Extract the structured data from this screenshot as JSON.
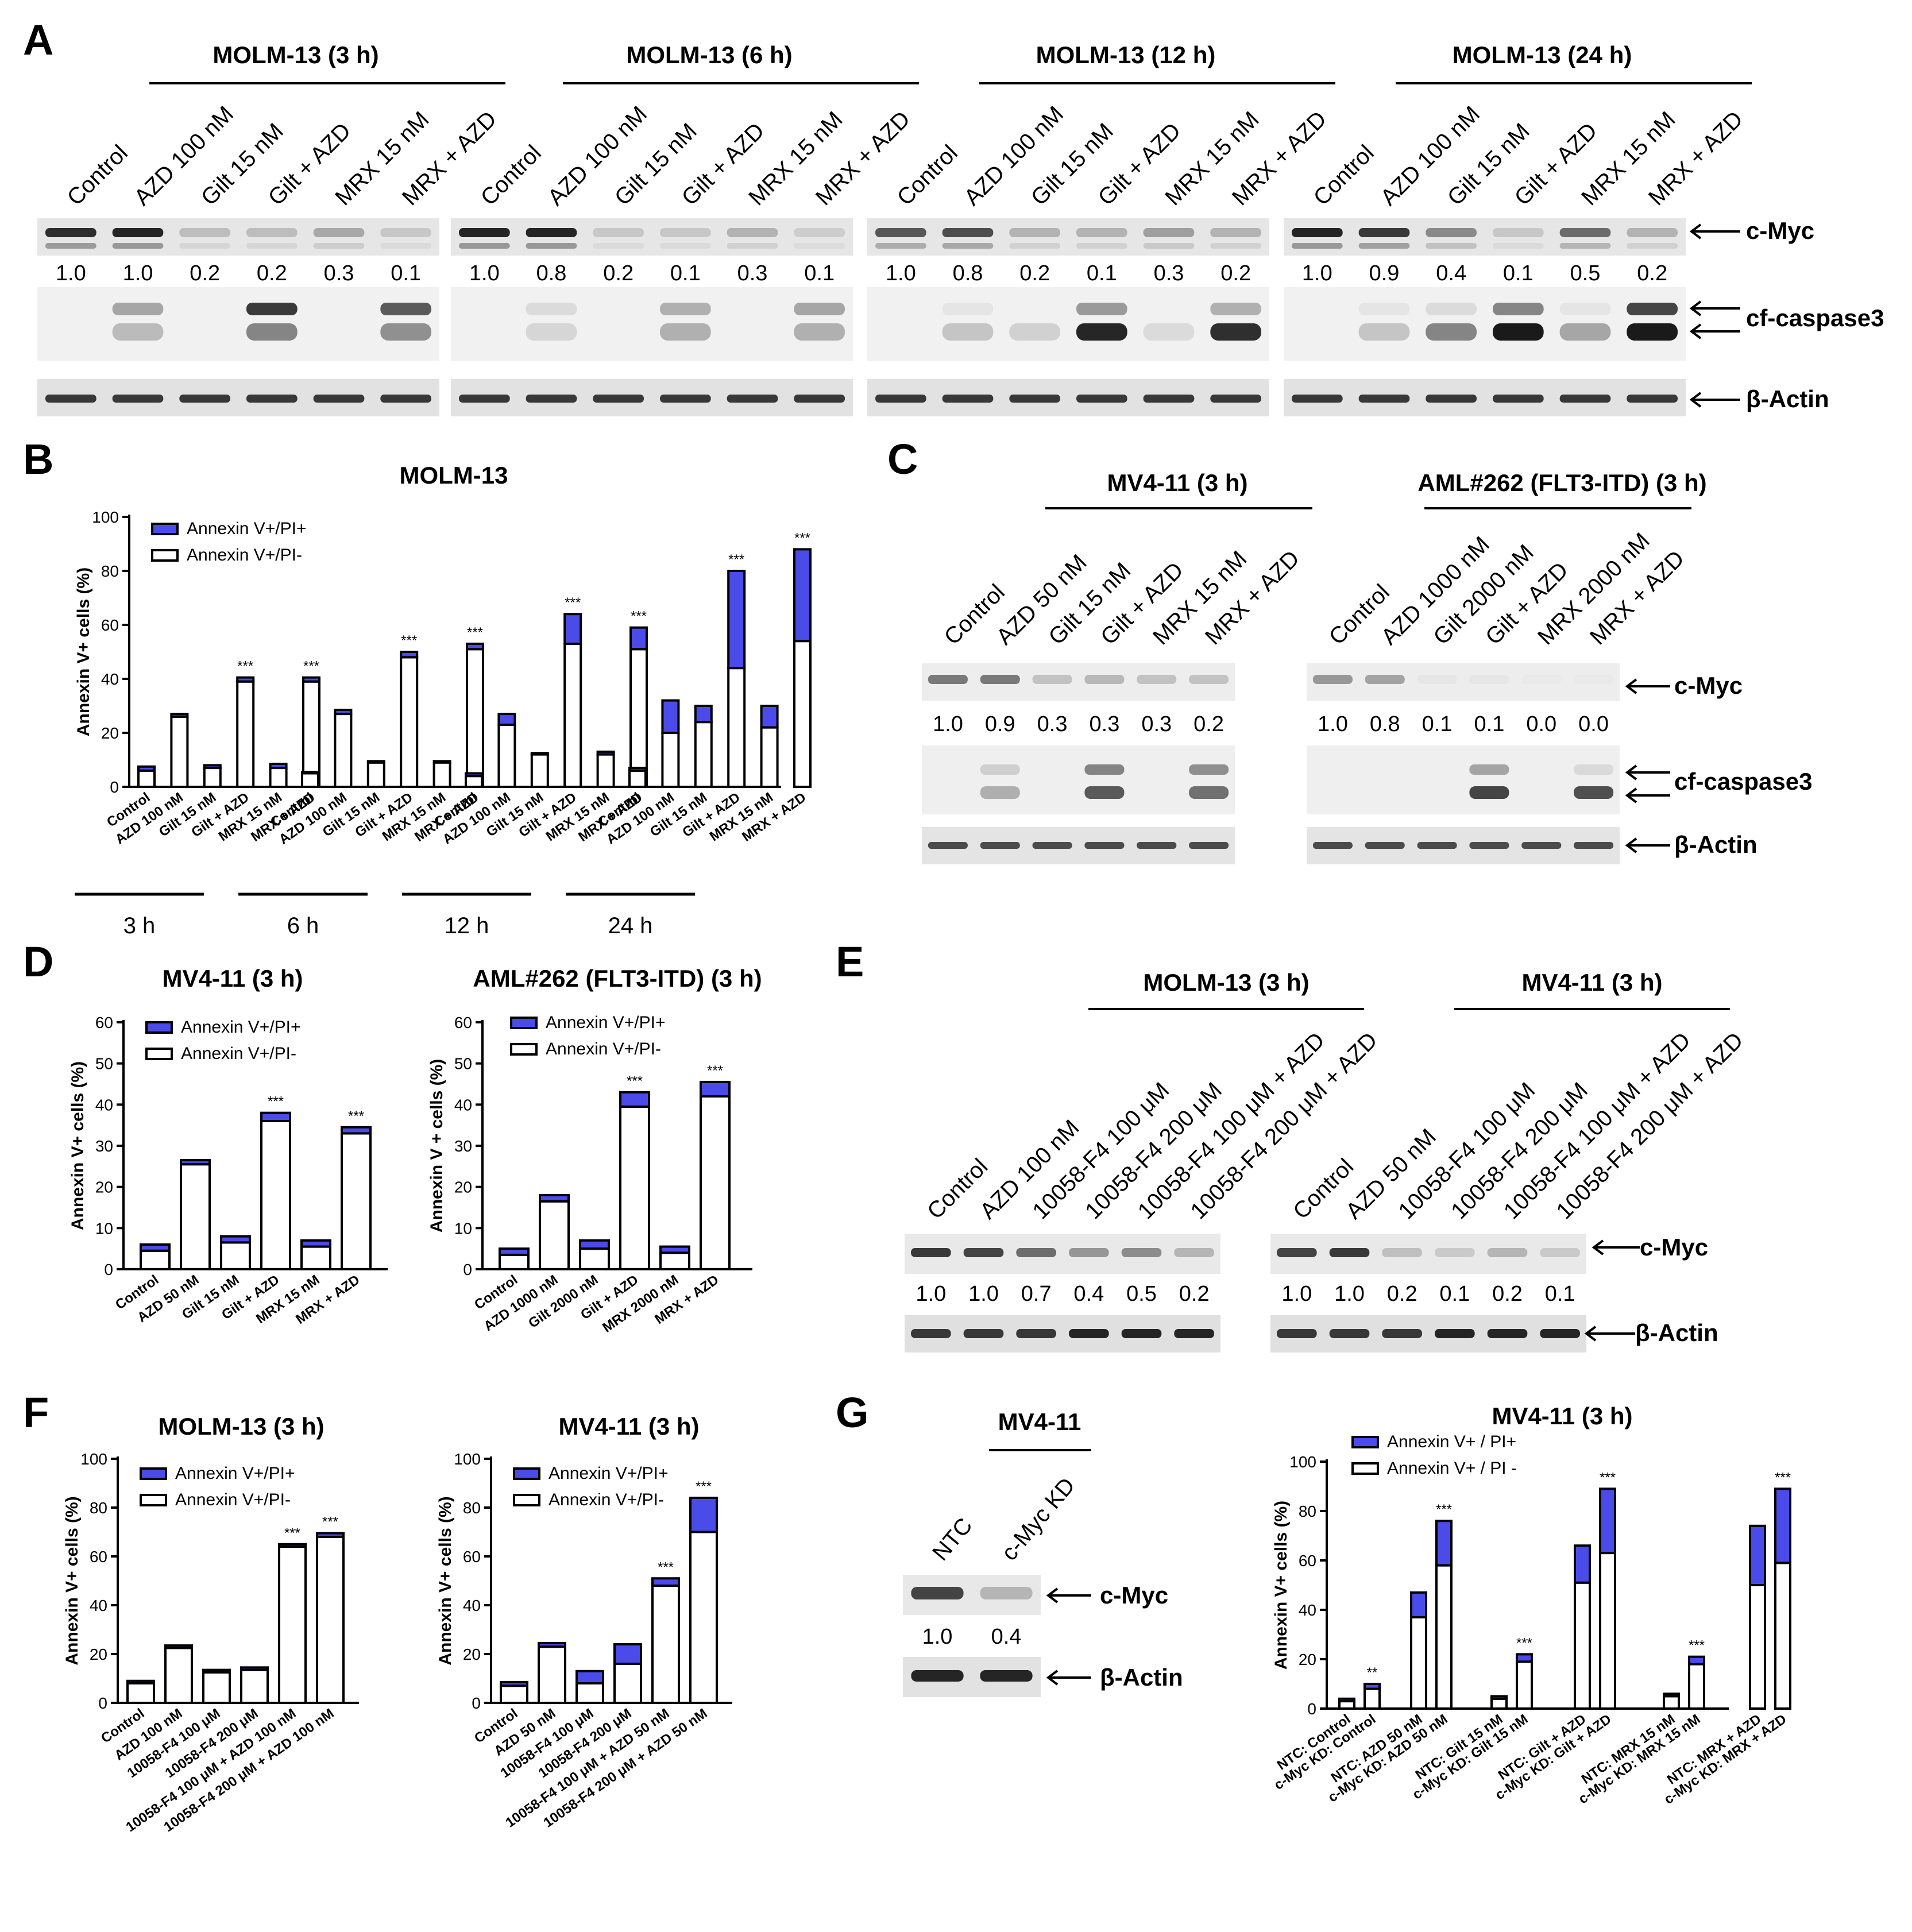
{
  "panels": {
    "A": {
      "letter": "A",
      "groups": [
        {
          "title": "MOLM-13 (3 h)",
          "lanes": [
            "Control",
            "AZD 100 nM",
            "Gilt 15 nM",
            "Gilt + AZD",
            "MRX 15 nM",
            "MRX + AZD"
          ],
          "cmyc": [
            "1.0",
            "1.0",
            "0.2",
            "0.2",
            "0.3",
            "0.1"
          ],
          "cmyc_bands": [
            0.9,
            0.95,
            0.2,
            0.2,
            0.3,
            0.15
          ],
          "casp_upper": [
            0,
            0.35,
            0,
            0.85,
            0,
            0.7
          ],
          "casp_lower": [
            0,
            0.25,
            0,
            0.5,
            0,
            0.45
          ]
        },
        {
          "title": "MOLM-13 (6 h)",
          "lanes": [
            "Control",
            "AZD 100 nM",
            "Gilt 15 nM",
            "Gilt + AZD",
            "MRX 15 nM",
            "MRX + AZD"
          ],
          "cmyc": [
            "1.0",
            "0.8",
            "0.2",
            "0.1",
            "0.3",
            "0.1"
          ],
          "cmyc_bands": [
            0.95,
            0.95,
            0.15,
            0.15,
            0.25,
            0.12
          ],
          "casp_upper": [
            0,
            0.1,
            0,
            0.3,
            0,
            0.35
          ],
          "casp_lower": [
            0,
            0.12,
            0,
            0.3,
            0,
            0.3
          ]
        },
        {
          "title": "MOLM-13 (12 h)",
          "lanes": [
            "Control",
            "AZD 100 nM",
            "Gilt 15 nM",
            "Gilt + AZD",
            "MRX 15 nM",
            "MRX + AZD"
          ],
          "cmyc": [
            "1.0",
            "0.8",
            "0.2",
            "0.1",
            "0.3",
            "0.2"
          ],
          "cmyc_bands": [
            0.7,
            0.75,
            0.25,
            0.25,
            0.35,
            0.25
          ],
          "casp_upper": [
            0,
            0.05,
            0,
            0.4,
            0,
            0.3
          ],
          "casp_lower": [
            0,
            0.2,
            0.15,
            0.95,
            0.1,
            0.9
          ]
        },
        {
          "title": "MOLM-13 (24 h)",
          "lanes": [
            "Control",
            "AZD 100 nM",
            "Gilt 15 nM",
            "Gilt + AZD",
            "MRX 15 nM",
            "MRX + AZD"
          ],
          "cmyc": [
            "1.0",
            "0.9",
            "0.4",
            "0.1",
            "0.5",
            "0.2"
          ],
          "cmyc_bands": [
            0.95,
            0.85,
            0.45,
            0.15,
            0.6,
            0.25
          ],
          "casp_upper": [
            0,
            0.05,
            0.1,
            0.5,
            0.05,
            0.8
          ],
          "casp_lower": [
            0,
            0.2,
            0.5,
            1.0,
            0.35,
            1.0
          ]
        }
      ],
      "proteins": [
        "c-Myc",
        "cf-caspase3",
        "β-Actin"
      ]
    },
    "B": {
      "letter": "B",
      "title": "MOLM-13",
      "ylabel": "Annexin V+ cells (%)",
      "legend": [
        "Annexin V+/PI+",
        "Annexin V+/PI-"
      ],
      "time_labels": [
        "3 h",
        "6 h",
        "12 h",
        "24 h"
      ],
      "xlabels": [
        "Control",
        "AZD 100 nM",
        "Gilt 15 nM",
        "Gilt + AZD",
        "MRX 15 nM",
        "MRX + AZD"
      ],
      "significance": "***"
    },
    "C": {
      "letter": "C",
      "groups": [
        {
          "title": "MV4-11 (3 h)",
          "lanes": [
            "Control",
            "AZD 50 nM",
            "Gilt 15 nM",
            "Gilt + AZD",
            "MRX 15 nM",
            "MRX + AZD"
          ],
          "cmyc": [
            "1.0",
            "0.9",
            "0.3",
            "0.3",
            "0.3",
            "0.2"
          ],
          "cmyc_bands": [
            0.55,
            0.55,
            0.2,
            0.25,
            0.2,
            0.2
          ],
          "casp_upper": [
            0,
            0.15,
            0,
            0.5,
            0,
            0.45
          ],
          "casp_lower": [
            0,
            0.3,
            0,
            0.7,
            0,
            0.6
          ]
        },
        {
          "title": "AML#262 (FLT3-ITD) (3 h)",
          "lanes": [
            "Control",
            "AZD 1000 nM",
            "Gilt 2000 nM",
            "Gilt + AZD",
            "MRX 2000  nM",
            "MRX + AZD"
          ],
          "cmyc": [
            "1.0",
            "0.8",
            "0.1",
            "0.1",
            "0.0",
            "0.0"
          ],
          "cmyc_bands": [
            0.4,
            0.35,
            0.03,
            0.03,
            0.02,
            0.02
          ],
          "casp_upper": [
            0,
            0,
            0,
            0.35,
            0,
            0.1
          ],
          "casp_lower": [
            0,
            0,
            0,
            0.8,
            0,
            0.75
          ]
        }
      ],
      "proteins": [
        "c-Myc",
        "cf-caspase3",
        "β-Actin"
      ]
    },
    "D": {
      "letter": "D",
      "significance": "***",
      "legend": [
        "Annexin V+/PI+",
        "Annexin V+/PI-"
      ],
      "charts": [
        {
          "title": "MV4-11 (3 h)",
          "ylabel": "Annexin V+ cells (%)",
          "xlabels": [
            "Control",
            "AZD 50 nM",
            "Gilt 15 nM",
            "Gilt + AZD",
            "MRX 15 nM",
            "MRX + AZD"
          ]
        },
        {
          "title": "AML#262 (FLT3-ITD) (3 h)",
          "ylabel": "Annexin V + cells (%)",
          "xlabels": [
            "Control",
            "AZD 1000 nM",
            "Gilt 2000 nM",
            "Gilt + AZD",
            "MRX 2000 nM",
            "MRX + AZD"
          ]
        }
      ]
    },
    "E": {
      "letter": "E",
      "groups": [
        {
          "title": "MOLM-13 (3 h)",
          "lanes": [
            "Control",
            "AZD  100 nM",
            "10058-F4 100 μM",
            "10058-F4 200 μM",
            "10058-F4 100 μM + AZD",
            "10058-F4 200 μM + AZD"
          ],
          "cmyc": [
            "1.0",
            "1.0",
            "0.7",
            "0.4",
            "0.5",
            "0.2"
          ],
          "cmyc_bands": [
            0.85,
            0.8,
            0.6,
            0.4,
            0.45,
            0.25
          ]
        },
        {
          "title": "MV4-11 (3 h)",
          "lanes": [
            "Control",
            "AZD  50 nM",
            "10058-F4 100 μM",
            "10058-F4 200 μM",
            "10058-F4 100 μM + AZD",
            "10058-F4 200 μM + AZD"
          ],
          "cmyc": [
            "1.0",
            "1.0",
            "0.2",
            "0.1",
            "0.2",
            "0.1"
          ],
          "cmyc_bands": [
            0.8,
            0.85,
            0.2,
            0.15,
            0.25,
            0.15
          ]
        }
      ],
      "proteins": [
        "c-Myc",
        "β-Actin"
      ]
    },
    "F": {
      "letter": "F",
      "significance": "***",
      "legend": [
        "Annexin V+/PI+",
        "Annexin V+/PI-"
      ],
      "charts": [
        {
          "title": "MOLM-13 (3 h)",
          "ylabel": "Annexin V+ cells (%)",
          "xlabels": [
            "Control",
            "AZD 100 nM",
            "10058-F4 100 μM",
            "10058-F4 200 μM",
            "10058-F4 100 μM + AZD 100 nM",
            "10058-F4 200 μM + AZD 100 nM"
          ]
        },
        {
          "title": "MV4-11 (3 h)",
          "ylabel": "Annexin V+ cells (%)",
          "xlabels": [
            "Control",
            "AZD 50 nM",
            "10058-F4 100 μM",
            "10058-F4 200 μM",
            "10058-F4 100 μM + AZD 50 nM",
            "10058-F4 200 μM + AZD 50 nM"
          ]
        }
      ]
    },
    "G": {
      "letter": "G",
      "blot_title": "MV4-11",
      "lanes": [
        "NTC",
        "c-Myc KD"
      ],
      "cmyc": [
        "1.0",
        "0.4"
      ],
      "cmyc_bands": [
        0.8,
        0.25
      ],
      "proteins": [
        "c-Myc",
        "β-Actin"
      ],
      "chart_title": "MV4-11 (3 h)",
      "ylabel": "Annexin V+ cells (%)",
      "legend": [
        "Annexin V+ / PI+",
        "Annexin V+ / PI -"
      ],
      "xlabels": [
        "NTC: Control",
        "c-Myc KD: Control",
        "NTC: AZD 50 nM",
        "c-Myc KD: AZD 50 nM",
        "NTC: Gilt 15 nM",
        "c-Myc KD: Gilt 15 nM",
        "NTC: Gilt + AZD",
        "c-Myc KD: Gilt + AZD",
        "NTC: MRX 15 nM",
        "c-Myc KD: MRX 15 nM",
        "NTC: MRX + AZD",
        "c-Myc KD: MRX + AZD"
      ]
    }
  },
  "colors": {
    "pi_plus": "#4b4bea",
    "pi_minus": "#ffffff",
    "band": "#1a1a1a"
  },
  "chart_data": [
    {
      "type": "bar",
      "stacked": true,
      "panel": "B",
      "title": "MOLM-13",
      "ylabel": "Annexin V+ cells (%)",
      "ylim": [
        0,
        100
      ],
      "categories": [
        "Control",
        "AZD 100 nM",
        "Gilt 15 nM",
        "Gilt + AZD",
        "MRX 15 nM",
        "MRX + AZD",
        "Control",
        "AZD 100 nM",
        "Gilt 15 nM",
        "Gilt + AZD",
        "MRX 15 nM",
        "MRX + AZD",
        "Control",
        "AZD 100 nM",
        "Gilt 15 nM",
        "Gilt + AZD",
        "MRX 15 nM",
        "MRX + AZD",
        "Control",
        "AZD 100 nM",
        "Gilt 15 nM",
        "Gilt + AZD",
        "MRX 15 nM",
        "MRX + AZD"
      ],
      "groups": [
        "3 h",
        "6 h",
        "12 h",
        "24 h"
      ],
      "series": [
        {
          "name": "Annexin V+/PI-",
          "values": [
            6,
            26,
            7,
            39,
            7,
            39,
            5,
            27,
            9,
            48,
            9,
            51,
            4,
            23,
            12,
            53,
            12,
            51,
            6,
            20,
            24,
            44,
            22,
            54
          ]
        },
        {
          "name": "Annexin V+/PI+",
          "values": [
            1.5,
            1,
            1,
            1.5,
            1.5,
            1.5,
            0.5,
            1.5,
            0.5,
            2,
            0.5,
            2,
            1,
            4,
            0.5,
            11,
            1,
            8,
            1,
            12,
            6,
            36,
            8,
            34
          ]
        }
      ],
      "significant": [
        false,
        false,
        false,
        true,
        false,
        true,
        false,
        false,
        false,
        true,
        false,
        true,
        false,
        false,
        false,
        true,
        false,
        true,
        false,
        false,
        false,
        true,
        false,
        true
      ]
    },
    {
      "type": "bar",
      "stacked": true,
      "panel": "D",
      "title": "MV4-11 (3 h)",
      "ylabel": "Annexin V+ cells (%)",
      "ylim": [
        0,
        60
      ],
      "categories": [
        "Control",
        "AZD 50 nM",
        "Gilt 15 nM",
        "Gilt + AZD",
        "MRX 15 nM",
        "MRX + AZD"
      ],
      "series": [
        {
          "name": "Annexin V+/PI-",
          "values": [
            4.5,
            25.5,
            6.5,
            36,
            5.5,
            33
          ]
        },
        {
          "name": "Annexin V+/PI+",
          "values": [
            1.5,
            1,
            1.5,
            2,
            1.5,
            1.5
          ]
        }
      ],
      "significant": [
        false,
        false,
        false,
        true,
        false,
        true
      ]
    },
    {
      "type": "bar",
      "stacked": true,
      "panel": "D",
      "title": "AML#262 (FLT3-ITD) (3 h)",
      "ylabel": "Annexin V + cells (%)",
      "ylim": [
        0,
        60
      ],
      "categories": [
        "Control",
        "AZD 1000 nM",
        "Gilt 2000 nM",
        "Gilt + AZD",
        "MRX 2000 nM",
        "MRX + AZD"
      ],
      "series": [
        {
          "name": "Annexin V+/PI-",
          "values": [
            3.5,
            16.5,
            5,
            39.5,
            4,
            42
          ]
        },
        {
          "name": "Annexin V+/PI+",
          "values": [
            1.5,
            1.5,
            2,
            3.5,
            1.5,
            3.5
          ]
        }
      ],
      "significant": [
        false,
        false,
        false,
        true,
        false,
        true
      ]
    },
    {
      "type": "bar",
      "stacked": true,
      "panel": "F",
      "title": "MOLM-13 (3 h)",
      "ylabel": "Annexin V+ cells (%)",
      "ylim": [
        0,
        100
      ],
      "categories": [
        "Control",
        "AZD 100 nM",
        "10058-F4 100 μM",
        "10058-F4 200 μM",
        "10058-F4 100 μM + AZD 100 nM",
        "10058-F4 200 μM + AZD 100 nM"
      ],
      "series": [
        {
          "name": "Annexin V+/PI-",
          "values": [
            8,
            22.5,
            12.5,
            13.5,
            64,
            68
          ]
        },
        {
          "name": "Annexin V+/PI+",
          "values": [
            1,
            1,
            1,
            1,
            1,
            1.5
          ]
        }
      ],
      "significant": [
        false,
        false,
        false,
        false,
        true,
        true
      ]
    },
    {
      "type": "bar",
      "stacked": true,
      "panel": "F",
      "title": "MV4-11 (3 h)",
      "ylabel": "Annexin V+ cells (%)",
      "ylim": [
        0,
        100
      ],
      "categories": [
        "Control",
        "AZD 50 nM",
        "10058-F4 100 μM",
        "10058-F4 200 μM",
        "10058-F4 100 μM + AZD 50 nM",
        "10058-F4 200 μM + AZD 50 nM"
      ],
      "series": [
        {
          "name": "Annexin V+/PI-",
          "values": [
            7,
            23,
            8,
            16,
            48,
            70
          ]
        },
        {
          "name": "Annexin V+/PI+",
          "values": [
            1.5,
            1.5,
            5,
            8,
            3,
            14
          ]
        }
      ],
      "significant": [
        false,
        false,
        false,
        false,
        true,
        true
      ]
    },
    {
      "type": "bar",
      "stacked": true,
      "panel": "G",
      "title": "MV4-11 (3 h)",
      "ylabel": "Annexin V+ cells (%)",
      "ylim": [
        0,
        100
      ],
      "categories": [
        "NTC: Control",
        "c-Myc KD: Control",
        "NTC: AZD 50 nM",
        "c-Myc KD: AZD 50 nM",
        "NTC: Gilt 15 nM",
        "c-Myc KD: Gilt 15 nM",
        "NTC: Gilt + AZD",
        "c-Myc KD: Gilt + AZD",
        "NTC: MRX 15 nM",
        "c-Myc KD: MRX 15 nM",
        "NTC: MRX + AZD",
        "c-Myc KD: MRX + AZD"
      ],
      "series": [
        {
          "name": "Annexin V+ / PI -",
          "values": [
            3,
            8,
            37,
            58,
            4,
            19,
            51,
            63,
            5,
            18,
            50,
            59
          ]
        },
        {
          "name": "Annexin V+ / PI+",
          "values": [
            1,
            2,
            10,
            18,
            1,
            3,
            15,
            26,
            1,
            3,
            24,
            30
          ]
        }
      ],
      "significance_marks": [
        "",
        "**",
        "",
        "***",
        "",
        "***",
        "",
        "***",
        "",
        "***",
        "",
        "***"
      ]
    }
  ]
}
